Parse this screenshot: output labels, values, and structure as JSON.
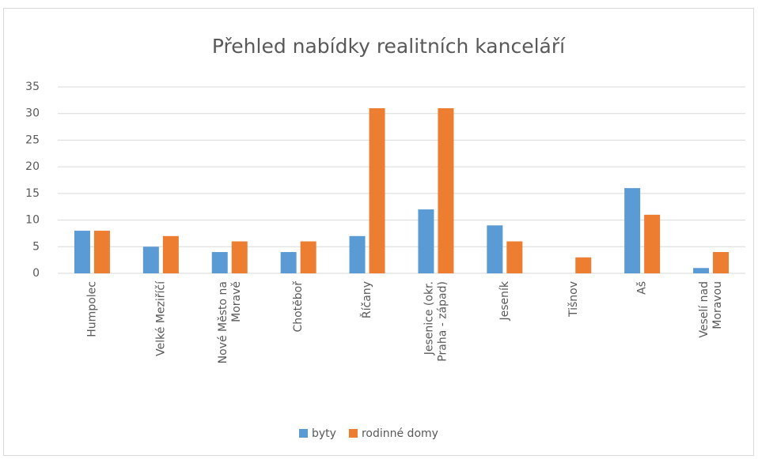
{
  "chart_data": {
    "type": "bar",
    "title": "Přehled nabídky realitních kanceláří",
    "categories": [
      "Humpolec",
      "Velké Meziříčí",
      "Nové Město na Moravě",
      "Chotěboř",
      "Říčany",
      "Jesenice (okr. Praha - západ)",
      "Jeseník",
      "Tišnov",
      "Aš",
      "Veselí nad Moravou"
    ],
    "series": [
      {
        "name": "byty",
        "color": "#5b9bd5",
        "values": [
          8,
          5,
          4,
          4,
          7,
          12,
          9,
          0,
          16,
          1
        ]
      },
      {
        "name": "rodinné domy",
        "color": "#ed7d31",
        "values": [
          8,
          7,
          6,
          6,
          31,
          31,
          6,
          3,
          11,
          4
        ]
      }
    ],
    "ylim": [
      0,
      35
    ],
    "yticks": [
      0,
      5,
      10,
      15,
      20,
      25,
      30,
      35
    ],
    "grid": true,
    "legend": "bottom"
  }
}
